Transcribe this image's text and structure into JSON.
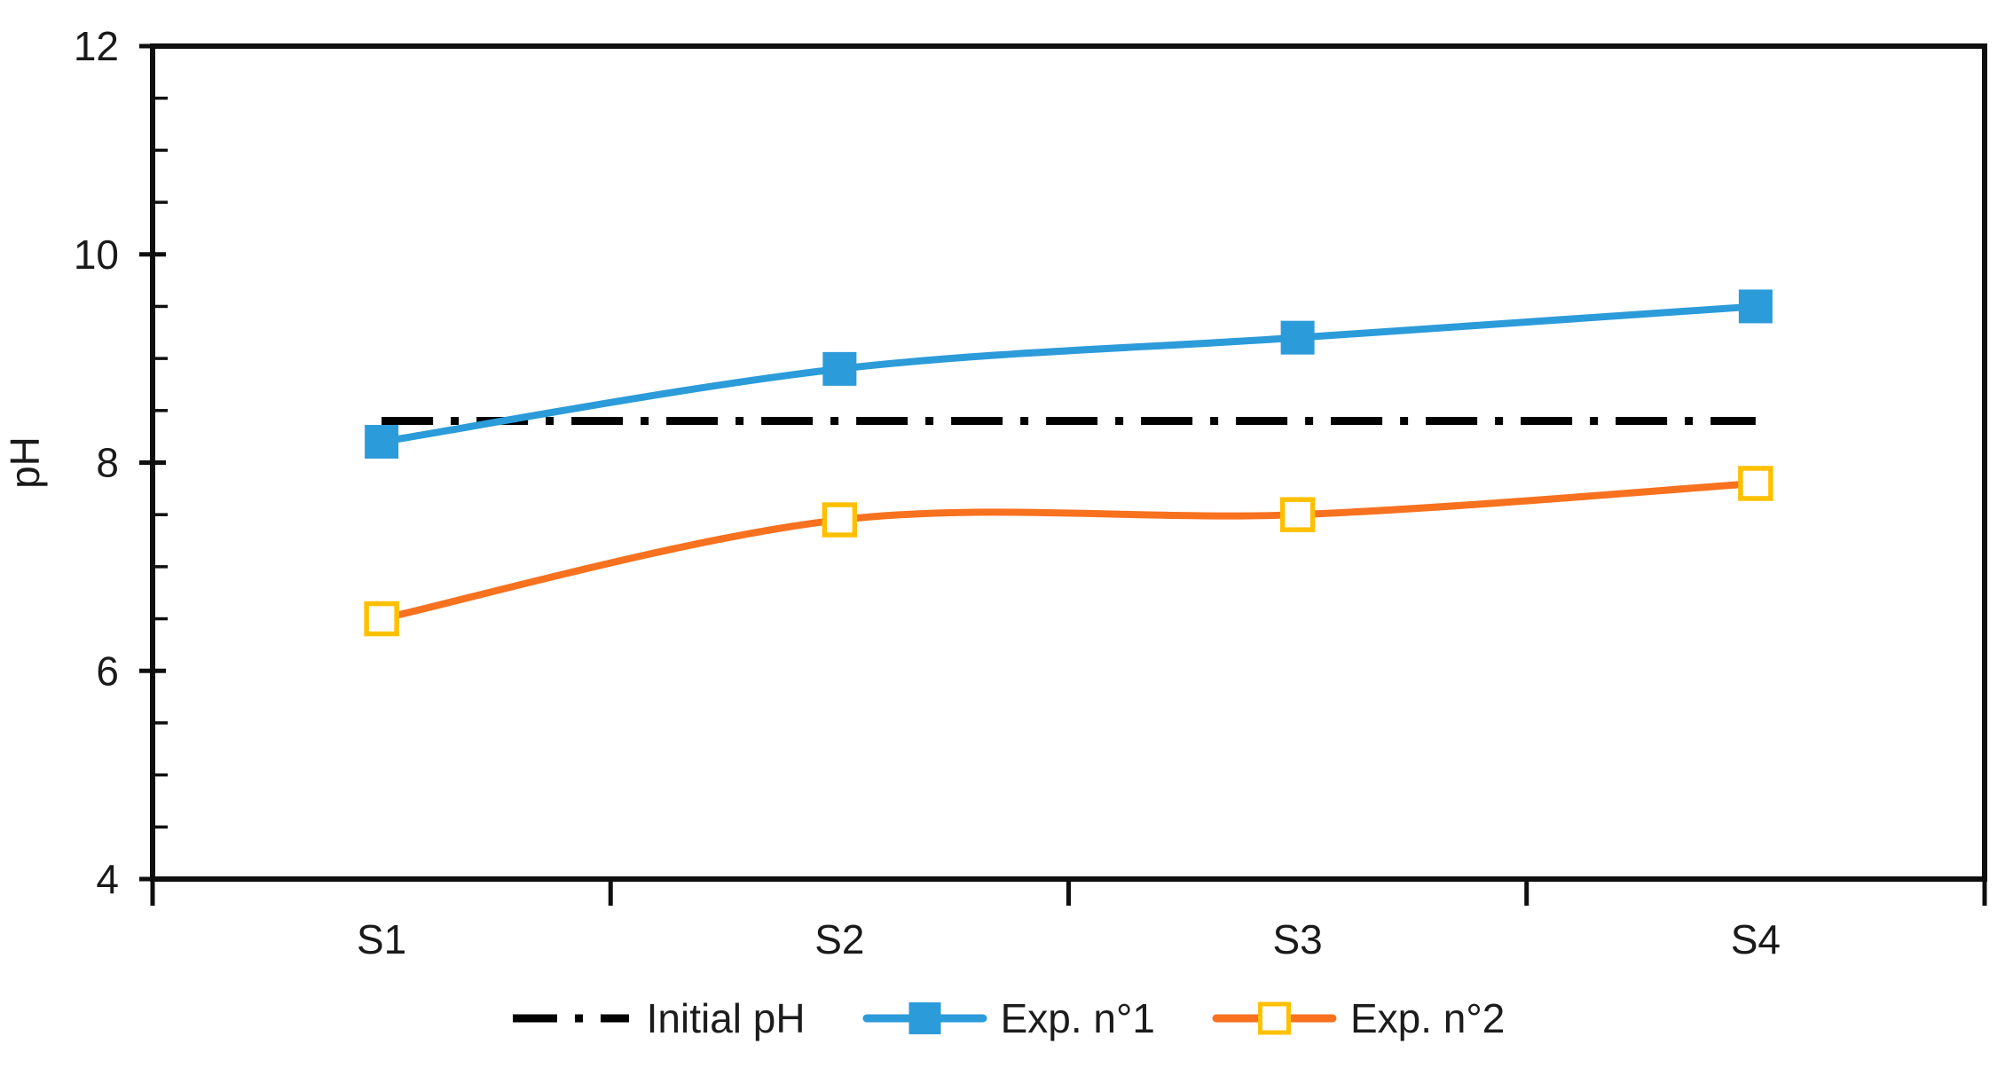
{
  "chart_data": {
    "type": "line",
    "categories": [
      "S1",
      "S2",
      "S3",
      "S4"
    ],
    "series": [
      {
        "name": "Initial pH",
        "values": [
          8.4,
          8.4,
          8.4,
          8.4
        ],
        "color": "#000000",
        "line": "dash-dot",
        "marker": "none",
        "smooth": false
      },
      {
        "name": "Exp. n°1",
        "values": [
          8.2,
          8.9,
          9.2,
          9.5
        ],
        "color": "#2C9BD9",
        "line": "solid",
        "marker": "filled-square",
        "marker_color": "#2C9BD9",
        "smooth": true
      },
      {
        "name": "Exp. n°2",
        "values": [
          6.5,
          7.45,
          7.5,
          7.8
        ],
        "color": "#F7711F",
        "line": "solid",
        "marker": "open-square",
        "marker_color": "#FFC000",
        "smooth": true
      }
    ],
    "title": "",
    "xlabel": "",
    "ylabel": "pH",
    "ylim": [
      4,
      12
    ],
    "y_major_step": 2,
    "y_minor_step": 0.5,
    "y_tick_labels": [
      "4",
      "6",
      "8",
      "10",
      "12"
    ],
    "grid": false,
    "legend_position": "bottom",
    "axis_color": "#0f0f0f",
    "text_color": "#1a1a1a"
  }
}
